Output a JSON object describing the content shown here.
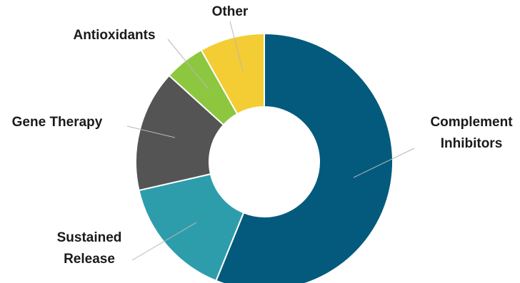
{
  "chart_data": {
    "type": "pie",
    "donut": true,
    "categories": [
      "Complement Inhibitors",
      "Sustained Release",
      "Gene Therapy",
      "Antioxidants",
      "Other"
    ],
    "label_lines": [
      [
        "Complement",
        "Inhibitors"
      ],
      [
        "Sustained",
        "Release"
      ],
      [
        "Gene Therapy"
      ],
      [
        "Antioxidants"
      ],
      [
        "Other"
      ]
    ],
    "values": [
      55,
      15,
      15,
      5,
      8
    ],
    "colors": [
      "#045a7d",
      "#2e9dab",
      "#545454",
      "#8dc63f",
      "#f4cc34"
    ],
    "title": "",
    "legend": "none"
  }
}
